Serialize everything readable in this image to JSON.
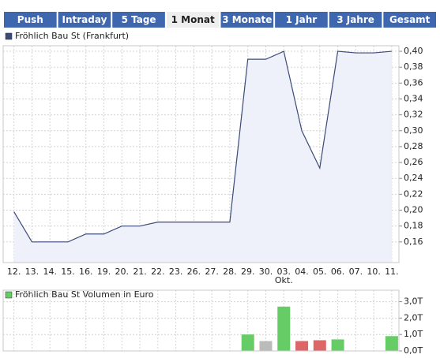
{
  "tabs": [
    {
      "label": "Push"
    },
    {
      "label": "Intraday"
    },
    {
      "label": "5 Tage"
    },
    {
      "label": "1 Monat",
      "active": true
    },
    {
      "label": "3 Monate"
    },
    {
      "label": "1 Jahr"
    },
    {
      "label": "3 Jahre"
    },
    {
      "label": "Gesamt"
    }
  ],
  "chart_data": [
    {
      "type": "area",
      "legend": "Fröhlich Bau St (Frankfurt)",
      "color": "#3b4a78",
      "fill": "#eef0fa",
      "categories": [
        "12.",
        "13.",
        "14.",
        "15.",
        "16.",
        "19.",
        "20.",
        "21.",
        "22.",
        "23.",
        "26.",
        "27.",
        "28.",
        "29.",
        "30.",
        "03.",
        "04.",
        "05.",
        "06.",
        "07.",
        "10.",
        "11."
      ],
      "category_sublabels": [
        null,
        null,
        null,
        null,
        null,
        null,
        null,
        null,
        null,
        null,
        null,
        null,
        null,
        null,
        null,
        "Okt.",
        null,
        null,
        null,
        null,
        null,
        null
      ],
      "values": [
        0.198,
        0.16,
        0.16,
        0.16,
        0.17,
        0.17,
        0.18,
        0.18,
        0.185,
        0.185,
        0.185,
        0.185,
        0.185,
        0.39,
        0.39,
        0.4,
        0.3,
        0.253,
        0.4,
        0.398,
        0.398,
        0.4
      ],
      "ylim": [
        0.134,
        0.407
      ],
      "yticks": [
        {
          "value": 0.16,
          "label": "0,16"
        },
        {
          "value": 0.18,
          "label": "0,18"
        },
        {
          "value": 0.2,
          "label": "0,20"
        },
        {
          "value": 0.22,
          "label": "0,22"
        },
        {
          "value": 0.24,
          "label": "0,24"
        },
        {
          "value": 0.26,
          "label": "0,26"
        },
        {
          "value": 0.28,
          "label": "0,28"
        },
        {
          "value": 0.3,
          "label": "0,30"
        },
        {
          "value": 0.32,
          "label": "0,32"
        },
        {
          "value": 0.34,
          "label": "0,34"
        },
        {
          "value": 0.36,
          "label": "0,36"
        },
        {
          "value": 0.38,
          "label": "0,38"
        },
        {
          "value": 0.4,
          "label": "0,40"
        }
      ],
      "grid": true
    },
    {
      "type": "bar",
      "legend": "Fröhlich Bau St Volumen in Euro",
      "color": "#66cc66",
      "values": [
        0,
        0,
        0,
        0,
        0,
        0,
        0,
        0,
        0,
        0,
        0,
        0,
        0,
        1.0,
        0.6,
        2.7,
        0.6,
        0.65,
        0.7,
        0,
        0,
        0.9
      ],
      "colors": [
        "#66cc66",
        "#66cc66",
        "#66cc66",
        "#66cc66",
        "#66cc66",
        "#66cc66",
        "#66cc66",
        "#66cc66",
        "#66cc66",
        "#66cc66",
        "#66cc66",
        "#66cc66",
        "#66cc66",
        "#66cc66",
        "#bbbbbb",
        "#66cc66",
        "#dd6666",
        "#dd6666",
        "#66cc66",
        "#66cc66",
        "#66cc66",
        "#66cc66"
      ],
      "ylim": [
        0,
        3.7
      ],
      "yticks": [
        {
          "value": 0,
          "label": "0,0T"
        },
        {
          "value": 1,
          "label": "1,0T"
        },
        {
          "value": 2,
          "label": "2,0T"
        },
        {
          "value": 3,
          "label": "3,0T"
        }
      ],
      "grid": true
    }
  ]
}
